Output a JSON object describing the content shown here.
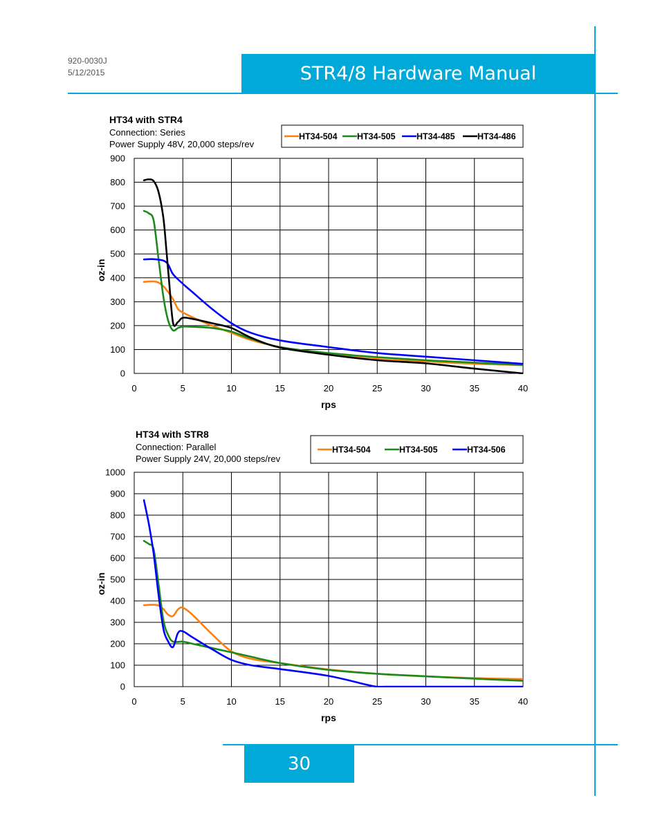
{
  "header": {
    "doc_number": "920-0030J",
    "doc_date": "5/12/2015",
    "title": "STR4/8 Hardware Manual"
  },
  "footer": {
    "page_number": "30"
  },
  "colors": {
    "accent": "#00a9d8"
  },
  "chart_data": [
    {
      "type": "line",
      "title": "HT34 with STR4",
      "subtitle_lines": [
        "Connection: Series",
        "Power Supply 48V, 20,000 steps/rev"
      ],
      "xlabel": "rps",
      "ylabel": "oz-in",
      "xlim": [
        0,
        40
      ],
      "ylim": [
        0,
        900
      ],
      "xticks": [
        0,
        5,
        10,
        15,
        20,
        25,
        30,
        35,
        40
      ],
      "yticks": [
        0,
        100,
        200,
        300,
        400,
        500,
        600,
        700,
        800,
        900
      ],
      "grid": true,
      "legend": "top-right",
      "series": [
        {
          "name": "HT34-504",
          "color": "#ff7f0e",
          "x": [
            1,
            2,
            2.5,
            3,
            3.5,
            4,
            4.5,
            5,
            6,
            8,
            10,
            12,
            15,
            20,
            25,
            30,
            35,
            40
          ],
          "y": [
            383,
            385,
            380,
            365,
            340,
            310,
            270,
            255,
            235,
            200,
            170,
            140,
            110,
            80,
            60,
            50,
            40,
            35
          ]
        },
        {
          "name": "HT34-505",
          "color": "#1a8a1a",
          "x": [
            1,
            1.5,
            2,
            2.5,
            3,
            3.5,
            4,
            4.5,
            5,
            6,
            8,
            10,
            12,
            15,
            20,
            25,
            30,
            35,
            40
          ],
          "y": [
            680,
            670,
            640,
            480,
            320,
            220,
            180,
            190,
            196,
            195,
            190,
            175,
            145,
            110,
            85,
            68,
            55,
            45,
            35
          ]
        },
        {
          "name": "HT34-485",
          "color": "#0000ff",
          "x": [
            1,
            2,
            3,
            3.5,
            4,
            5,
            6,
            8,
            10,
            12,
            15,
            20,
            25,
            30,
            35,
            40
          ],
          "y": [
            477,
            478,
            472,
            455,
            415,
            375,
            340,
            270,
            210,
            170,
            138,
            110,
            85,
            70,
            55,
            40
          ]
        },
        {
          "name": "HT34-486",
          "color": "#000000",
          "x": [
            1,
            1.5,
            2,
            2.5,
            3,
            3.3,
            3.6,
            4,
            4.5,
            5,
            6,
            8,
            10,
            12,
            15,
            20,
            25,
            30,
            35,
            40
          ],
          "y": [
            808,
            812,
            805,
            760,
            650,
            520,
            380,
            210,
            215,
            233,
            228,
            210,
            190,
            150,
            108,
            78,
            55,
            42,
            20,
            0
          ]
        }
      ]
    },
    {
      "type": "line",
      "title": "HT34 with STR8",
      "subtitle_lines": [
        "Connection: Parallel",
        "Power Supply 24V, 20,000 steps/rev"
      ],
      "xlabel": "rps",
      "ylabel": "oz-in",
      "xlim": [
        0,
        40
      ],
      "ylim": [
        0,
        1000
      ],
      "xticks": [
        0,
        5,
        10,
        15,
        20,
        25,
        30,
        35,
        40
      ],
      "yticks": [
        0,
        100,
        200,
        300,
        400,
        500,
        600,
        700,
        800,
        900,
        1000
      ],
      "grid": true,
      "legend": "top-right",
      "series": [
        {
          "name": "HT34-504",
          "color": "#ff7f0e",
          "x": [
            1,
            2,
            2.5,
            3,
            3.5,
            4,
            4.5,
            5,
            6,
            8,
            10,
            12,
            15,
            20,
            25,
            30,
            35,
            40
          ],
          "y": [
            380,
            382,
            378,
            362,
            335,
            330,
            360,
            368,
            335,
            245,
            165,
            130,
            110,
            80,
            60,
            48,
            40,
            35
          ]
        },
        {
          "name": "HT34-505",
          "color": "#1a8a1a",
          "x": [
            1,
            1.5,
            2,
            2.5,
            3,
            3.5,
            4,
            5,
            6,
            8,
            10,
            12,
            15,
            20,
            25,
            30,
            35,
            40
          ],
          "y": [
            680,
            665,
            640,
            480,
            310,
            240,
            210,
            210,
            200,
            180,
            160,
            140,
            110,
            78,
            60,
            48,
            37,
            27
          ]
        },
        {
          "name": "HT34-506",
          "color": "#0000ff",
          "x": [
            1,
            1.5,
            2,
            2.5,
            3,
            3.5,
            4,
            4.5,
            5,
            6,
            8,
            10,
            12,
            15,
            20,
            24,
            25,
            26,
            30,
            35,
            40
          ],
          "y": [
            870,
            760,
            620,
            430,
            270,
            210,
            185,
            250,
            258,
            230,
            175,
            125,
            100,
            82,
            50,
            8,
            0,
            0,
            0,
            0,
            0
          ]
        }
      ]
    }
  ]
}
